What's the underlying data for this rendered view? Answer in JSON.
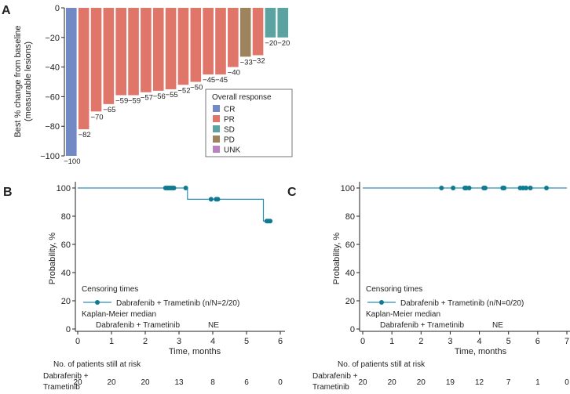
{
  "colors": {
    "CR": "#7189c4",
    "PR": "#e0756a",
    "SD": "#5ba3a1",
    "PD": "#9e845c",
    "UNK": "#ba82c0",
    "km": "#2a8fb6",
    "km_marker": "#0f7a94",
    "axis": "#222222"
  },
  "chart_data": [
    {
      "panel": "A",
      "type": "bar",
      "ylabel_line1": "Best % change from baseline",
      "ylabel_line2": "(measurable lesions)",
      "ylim": [
        -100,
        0
      ],
      "yticks": [
        0,
        -20,
        -40,
        -60,
        -80,
        -100
      ],
      "values": [
        -100,
        -82,
        -70,
        -65,
        -59,
        -59,
        -57,
        -56,
        -55,
        -52,
        -50,
        -45,
        -45,
        -40,
        -33,
        -32,
        -20,
        -20
      ],
      "labels": [
        "−100",
        "−82",
        "−70",
        "−65",
        "−59",
        "−59",
        "−57",
        "−56",
        "−55",
        "−52",
        "−50",
        "−45",
        "−45",
        "−40",
        "−33",
        "−32",
        "−20",
        "−20"
      ],
      "categories": [
        "CR",
        "PR",
        "PR",
        "PR",
        "PR",
        "PR",
        "PR",
        "PR",
        "PR",
        "PR",
        "PR",
        "PR",
        "PR",
        "PR",
        "PD",
        "PR",
        "SD",
        "SD"
      ],
      "legend": {
        "title": "Overall response",
        "items": [
          "CR",
          "PR",
          "SD",
          "PD",
          "UNK"
        ],
        "position": "bottom-right"
      }
    },
    {
      "panel": "B",
      "type": "line",
      "subtype": "kaplan-meier",
      "xlabel": "Time, months",
      "ylabel": "Probability, %",
      "xlim": [
        0,
        6
      ],
      "ylim": [
        0,
        100
      ],
      "xticks": [
        0,
        1,
        2,
        3,
        4,
        5,
        6
      ],
      "yticks": [
        0,
        20,
        40,
        60,
        80,
        100
      ],
      "steps": [
        [
          0,
          100
        ],
        [
          3.25,
          100
        ],
        [
          3.25,
          92
        ],
        [
          5.5,
          92
        ],
        [
          5.5,
          76.5
        ],
        [
          5.75,
          76.5
        ]
      ],
      "censored": [
        [
          2.6,
          100
        ],
        [
          2.65,
          100
        ],
        [
          2.7,
          100
        ],
        [
          2.75,
          100
        ],
        [
          2.8,
          100
        ],
        [
          2.85,
          100
        ],
        [
          3.2,
          100
        ],
        [
          3.95,
          92
        ],
        [
          4.1,
          92
        ],
        [
          4.15,
          92
        ],
        [
          5.6,
          76.5
        ],
        [
          5.65,
          76.5
        ],
        [
          5.7,
          76.5
        ]
      ],
      "censoring_title": "Censoring times",
      "legend_entry": "Dabrafenib + Trametinib (n/N=2/20)",
      "km_median_title": "Kaplan-Meier median",
      "km_median_group": "Dabrafenib + Trametinib",
      "km_median_value": "NE",
      "risk_title": "No. of patients still at risk",
      "risk_group_line1": "Dabrafenib +",
      "risk_group_line2": "Trametinib",
      "risk_times": [
        0,
        1,
        2,
        3,
        4,
        5,
        6
      ],
      "risk_counts": [
        "20",
        "20",
        "20",
        "13",
        "8",
        "6",
        "0"
      ]
    },
    {
      "panel": "C",
      "type": "line",
      "subtype": "kaplan-meier",
      "xlabel": "Time, months",
      "ylabel": "Probability, %",
      "xlim": [
        0,
        7
      ],
      "ylim": [
        0,
        100
      ],
      "xticks": [
        0,
        1,
        2,
        3,
        4,
        5,
        6,
        7
      ],
      "yticks": [
        0,
        20,
        40,
        60,
        80,
        100
      ],
      "steps": [
        [
          0,
          100
        ],
        [
          7,
          100
        ]
      ],
      "censored": [
        [
          2.7,
          100
        ],
        [
          3.1,
          100
        ],
        [
          3.5,
          100
        ],
        [
          3.55,
          100
        ],
        [
          3.65,
          100
        ],
        [
          4.15,
          100
        ],
        [
          4.2,
          100
        ],
        [
          4.8,
          100
        ],
        [
          4.85,
          100
        ],
        [
          5.4,
          100
        ],
        [
          5.5,
          100
        ],
        [
          5.6,
          100
        ],
        [
          5.75,
          100
        ],
        [
          6.3,
          100
        ]
      ],
      "censoring_title": "Censoring times",
      "legend_entry": "Dabrafenib + Trametinib (n/N=0/20)",
      "km_median_title": "Kaplan-Meier median",
      "km_median_group": "Dabrafenib + Trametinib",
      "km_median_value": "NE",
      "risk_title": "No. of patients still at risk",
      "risk_group_line1": "Dabrafenib +",
      "risk_group_line2": "Trametinib",
      "risk_times": [
        0,
        1,
        2,
        3,
        4,
        5,
        6,
        7
      ],
      "risk_counts": [
        "20",
        "20",
        "20",
        "19",
        "12",
        "7",
        "1",
        "0"
      ]
    }
  ]
}
